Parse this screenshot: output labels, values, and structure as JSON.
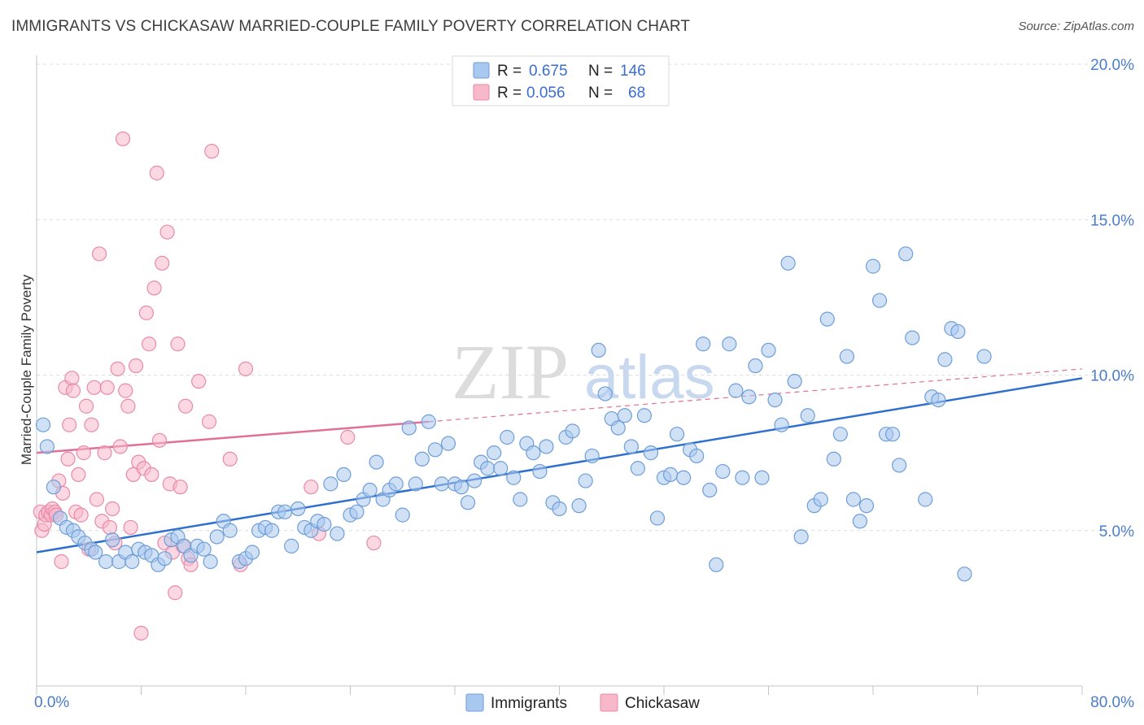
{
  "title": "IMMIGRANTS VS CHICKASAW MARRIED-COUPLE FAMILY POVERTY CORRELATION CHART",
  "source": "Source: ZipAtlas.com",
  "colors": {
    "blue_fill": "#a9c8ef",
    "blue_stroke": "#6e9ed8",
    "blue_line": "#2f6fce",
    "pink_fill": "#f7b8ca",
    "pink_stroke": "#e98aa8",
    "pink_line": "#e07098",
    "grid": "#d9dde3",
    "tick_text": "#4a7cc9"
  },
  "chart_data": {
    "type": "scatter",
    "title": "IMMIGRANTS VS CHICKASAW MARRIED-COUPLE FAMILY POVERTY CORRELATION CHART",
    "xlabel": "",
    "ylabel": "Married-Couple Family Poverty",
    "xlim": [
      0,
      80
    ],
    "ylim": [
      0,
      20
    ],
    "x_ticks": [
      "0.0%",
      "80.0%"
    ],
    "y_ticks": [
      {
        "value": 5,
        "label": "5.0%"
      },
      {
        "value": 10,
        "label": "10.0%"
      },
      {
        "value": 15,
        "label": "15.0%"
      },
      {
        "value": 20,
        "label": "20.0%"
      }
    ],
    "grid": true,
    "watermark": {
      "zip": "ZIP",
      "atlas": "atlas"
    },
    "legend": {
      "placement": "top-center",
      "entries": [
        {
          "r_label": "R =",
          "r_value": "0.675",
          "n_label": "N =",
          "n_value": "146"
        },
        {
          "r_label": "R =",
          "r_value": "0.056",
          "n_label": "N =",
          "n_value": "68"
        }
      ]
    },
    "series": [
      {
        "name": "Immigrants",
        "color": "blue",
        "trend": {
          "x0": 0,
          "y0": 4.3,
          "x1": 80,
          "y1": 9.9
        },
        "points": [
          [
            0.5,
            8.4
          ],
          [
            0.8,
            7.7
          ],
          [
            1.3,
            6.4
          ],
          [
            1.8,
            5.4
          ],
          [
            2.3,
            5.1
          ],
          [
            2.8,
            5.0
          ],
          [
            3.2,
            4.8
          ],
          [
            3.7,
            4.6
          ],
          [
            4.2,
            4.4
          ],
          [
            4.5,
            4.3
          ],
          [
            5.3,
            4.0
          ],
          [
            5.8,
            4.7
          ],
          [
            6.3,
            4.0
          ],
          [
            6.8,
            4.3
          ],
          [
            7.3,
            4.0
          ],
          [
            7.8,
            4.4
          ],
          [
            8.3,
            4.3
          ],
          [
            8.8,
            4.2
          ],
          [
            9.3,
            3.9
          ],
          [
            9.8,
            4.1
          ],
          [
            10.3,
            4.7
          ],
          [
            10.8,
            4.8
          ],
          [
            11.3,
            4.5
          ],
          [
            11.8,
            4.2
          ],
          [
            12.3,
            4.5
          ],
          [
            12.8,
            4.4
          ],
          [
            13.3,
            4.0
          ],
          [
            13.8,
            4.8
          ],
          [
            14.3,
            5.3
          ],
          [
            14.8,
            5.0
          ],
          [
            15.5,
            4.0
          ],
          [
            16.0,
            4.1
          ],
          [
            16.5,
            4.3
          ],
          [
            17.0,
            5.0
          ],
          [
            17.5,
            5.1
          ],
          [
            18.0,
            5.0
          ],
          [
            18.5,
            5.6
          ],
          [
            19.0,
            5.6
          ],
          [
            19.5,
            4.5
          ],
          [
            20.0,
            5.7
          ],
          [
            20.5,
            5.1
          ],
          [
            21.0,
            5.0
          ],
          [
            21.5,
            5.3
          ],
          [
            22.0,
            5.2
          ],
          [
            22.5,
            6.5
          ],
          [
            23.0,
            4.9
          ],
          [
            23.5,
            6.8
          ],
          [
            24.0,
            5.5
          ],
          [
            24.5,
            5.6
          ],
          [
            25.0,
            6.0
          ],
          [
            25.5,
            6.3
          ],
          [
            26.0,
            7.2
          ],
          [
            26.5,
            6.0
          ],
          [
            27.0,
            6.3
          ],
          [
            27.5,
            6.5
          ],
          [
            28.0,
            5.5
          ],
          [
            28.5,
            8.3
          ],
          [
            29.0,
            6.5
          ],
          [
            29.5,
            7.3
          ],
          [
            30.0,
            8.5
          ],
          [
            30.5,
            7.6
          ],
          [
            31.0,
            6.5
          ],
          [
            31.5,
            7.8
          ],
          [
            32.0,
            6.5
          ],
          [
            32.5,
            6.4
          ],
          [
            33.0,
            5.9
          ],
          [
            33.5,
            6.6
          ],
          [
            34.0,
            7.2
          ],
          [
            34.5,
            7.0
          ],
          [
            35.0,
            7.5
          ],
          [
            35.5,
            7.0
          ],
          [
            36.0,
            8.0
          ],
          [
            36.5,
            6.7
          ],
          [
            37.0,
            6.0
          ],
          [
            37.5,
            7.8
          ],
          [
            38.0,
            7.5
          ],
          [
            38.5,
            6.9
          ],
          [
            39.0,
            7.7
          ],
          [
            39.5,
            5.9
          ],
          [
            40.0,
            5.7
          ],
          [
            40.5,
            8.0
          ],
          [
            41.0,
            8.2
          ],
          [
            41.5,
            5.8
          ],
          [
            42.0,
            6.6
          ],
          [
            42.5,
            7.4
          ],
          [
            43.0,
            10.8
          ],
          [
            43.5,
            9.4
          ],
          [
            44.0,
            8.6
          ],
          [
            44.5,
            8.3
          ],
          [
            45.0,
            8.7
          ],
          [
            45.5,
            7.7
          ],
          [
            46.0,
            7.0
          ],
          [
            46.5,
            8.7
          ],
          [
            47.0,
            7.5
          ],
          [
            47.5,
            5.4
          ],
          [
            48.0,
            6.7
          ],
          [
            48.5,
            6.8
          ],
          [
            49.0,
            8.1
          ],
          [
            49.5,
            6.7
          ],
          [
            50.0,
            7.6
          ],
          [
            50.5,
            7.4
          ],
          [
            51.0,
            11.0
          ],
          [
            51.5,
            6.3
          ],
          [
            52.0,
            3.9
          ],
          [
            52.5,
            6.9
          ],
          [
            53.0,
            11.0
          ],
          [
            53.5,
            9.5
          ],
          [
            54.0,
            6.7
          ],
          [
            54.5,
            9.3
          ],
          [
            55.0,
            10.3
          ],
          [
            55.5,
            6.7
          ],
          [
            56.0,
            10.8
          ],
          [
            56.5,
            9.2
          ],
          [
            57.0,
            8.4
          ],
          [
            57.5,
            13.6
          ],
          [
            58.0,
            9.8
          ],
          [
            58.5,
            4.8
          ],
          [
            59.0,
            8.7
          ],
          [
            59.5,
            5.8
          ],
          [
            60.0,
            6.0
          ],
          [
            60.5,
            11.8
          ],
          [
            61.0,
            7.3
          ],
          [
            61.5,
            8.1
          ],
          [
            62.0,
            10.6
          ],
          [
            62.5,
            6.0
          ],
          [
            63.0,
            5.3
          ],
          [
            63.5,
            5.8
          ],
          [
            64.0,
            13.5
          ],
          [
            64.5,
            12.4
          ],
          [
            65.0,
            8.1
          ],
          [
            65.5,
            8.1
          ],
          [
            66.0,
            7.1
          ],
          [
            66.5,
            13.9
          ],
          [
            67.0,
            11.2
          ],
          [
            68.0,
            6.0
          ],
          [
            68.5,
            9.3
          ],
          [
            69.0,
            9.2
          ],
          [
            69.5,
            10.5
          ],
          [
            70.0,
            11.5
          ],
          [
            70.5,
            11.4
          ],
          [
            71.0,
            3.6
          ],
          [
            72.5,
            10.6
          ]
        ]
      },
      {
        "name": "Chickasaw",
        "color": "pink",
        "trend": {
          "x0": 0,
          "y0": 7.5,
          "x1": 30,
          "y1": 8.5,
          "dash_to_x": 80,
          "dash_to_y": 10.2
        },
        "points": [
          [
            0.3,
            5.6
          ],
          [
            0.4,
            5.0
          ],
          [
            0.6,
            5.2
          ],
          [
            0.7,
            5.5
          ],
          [
            0.9,
            5.6
          ],
          [
            1.1,
            5.5
          ],
          [
            1.2,
            5.7
          ],
          [
            1.4,
            5.6
          ],
          [
            1.5,
            5.5
          ],
          [
            1.7,
            6.6
          ],
          [
            1.9,
            4.0
          ],
          [
            2.0,
            6.2
          ],
          [
            2.2,
            9.6
          ],
          [
            2.4,
            7.3
          ],
          [
            2.5,
            8.4
          ],
          [
            2.7,
            9.9
          ],
          [
            2.8,
            9.5
          ],
          [
            3.0,
            5.6
          ],
          [
            3.2,
            6.8
          ],
          [
            3.4,
            5.5
          ],
          [
            3.6,
            7.5
          ],
          [
            3.8,
            9.0
          ],
          [
            4.0,
            4.4
          ],
          [
            4.2,
            8.4
          ],
          [
            4.4,
            9.6
          ],
          [
            4.6,
            6.0
          ],
          [
            4.8,
            13.9
          ],
          [
            5.0,
            5.3
          ],
          [
            5.2,
            7.5
          ],
          [
            5.4,
            9.6
          ],
          [
            5.6,
            5.1
          ],
          [
            5.8,
            5.7
          ],
          [
            6.0,
            4.6
          ],
          [
            6.2,
            10.2
          ],
          [
            6.4,
            7.7
          ],
          [
            6.6,
            17.6
          ],
          [
            6.8,
            9.5
          ],
          [
            7.0,
            9.0
          ],
          [
            7.2,
            5.1
          ],
          [
            7.4,
            6.8
          ],
          [
            7.6,
            10.3
          ],
          [
            7.8,
            7.2
          ],
          [
            8.0,
            1.7
          ],
          [
            8.2,
            7.0
          ],
          [
            8.4,
            12.0
          ],
          [
            8.6,
            11.0
          ],
          [
            8.8,
            6.8
          ],
          [
            9.0,
            12.8
          ],
          [
            9.2,
            16.5
          ],
          [
            9.4,
            7.9
          ],
          [
            9.6,
            13.6
          ],
          [
            9.8,
            4.6
          ],
          [
            10.0,
            14.6
          ],
          [
            10.2,
            6.5
          ],
          [
            10.4,
            4.3
          ],
          [
            10.6,
            3.0
          ],
          [
            10.8,
            11.0
          ],
          [
            11.0,
            6.4
          ],
          [
            11.2,
            4.5
          ],
          [
            11.4,
            9.0
          ],
          [
            11.6,
            4.1
          ],
          [
            11.8,
            3.9
          ],
          [
            12.4,
            9.8
          ],
          [
            13.2,
            8.5
          ],
          [
            13.4,
            17.2
          ],
          [
            14.8,
            7.3
          ],
          [
            15.6,
            3.9
          ],
          [
            16.0,
            10.2
          ]
        ],
        "extra_points": [
          [
            21.0,
            6.4
          ],
          [
            21.6,
            4.9
          ],
          [
            23.8,
            8.0
          ],
          [
            25.8,
            4.6
          ]
        ]
      }
    ]
  },
  "bottom_legend": {
    "items": [
      {
        "label": "Immigrants"
      },
      {
        "label": "Chickasaw"
      }
    ]
  }
}
